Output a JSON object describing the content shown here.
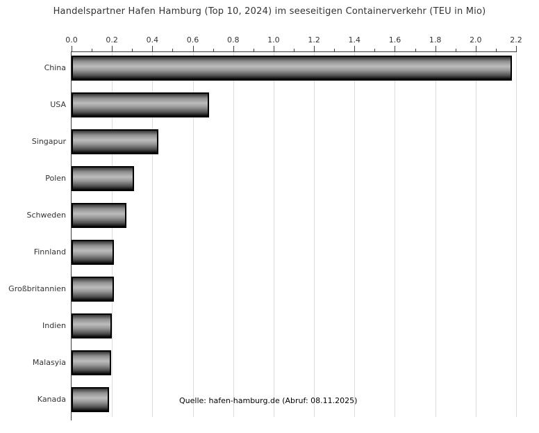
{
  "chart_data": {
    "type": "bar",
    "orientation": "horizontal",
    "title": "Handelspartner Hafen Hamburg (Top 10, 2024) im seeseitigen Containerverkehr (TEU in Mio)",
    "source_note": "Quelle: hafen-hamburg.de (Abruf: 08.11.2025)",
    "categories": [
      "China",
      "USA",
      "Singapur",
      "Polen",
      "Schweden",
      "Finnland",
      "Großbritannien",
      "Indien",
      "Malasyia",
      "Kanada"
    ],
    "values": [
      2.18,
      0.68,
      0.43,
      0.31,
      0.27,
      0.21,
      0.21,
      0.2,
      0.195,
      0.185
    ],
    "xlabel": "",
    "ylabel": "",
    "xlim": [
      0,
      2.2
    ],
    "x_ticks": [
      0.0,
      0.2,
      0.4,
      0.6,
      0.8,
      1.0,
      1.2,
      1.4,
      1.6,
      1.8,
      2.0,
      2.2
    ],
    "x_tick_labels": [
      "0.0",
      "0.2",
      "0.4",
      "0.6",
      "0.8",
      "1.0",
      "1.2",
      "1.4",
      "1.6",
      "1.8",
      "2.0",
      "2.2"
    ],
    "minor_tick_interval": 0.1,
    "grid": true,
    "axis_position": "top",
    "legend": null,
    "colors": {
      "background": "#ffffff",
      "axis": "#3c3c3c",
      "gridline": "#dcdcdc",
      "text": "#333333",
      "bar_border": "#000000"
    },
    "bar_gradient": [
      {
        "color": "#353535",
        "pos": "0%"
      },
      {
        "color": "#909090",
        "pos": "20%"
      },
      {
        "color": "#bcbcbc",
        "pos": "42%"
      },
      {
        "color": "#999999",
        "pos": "60%"
      },
      {
        "color": "#4f4f4f",
        "pos": "84%"
      },
      {
        "color": "#050505",
        "pos": "100%"
      }
    ]
  }
}
